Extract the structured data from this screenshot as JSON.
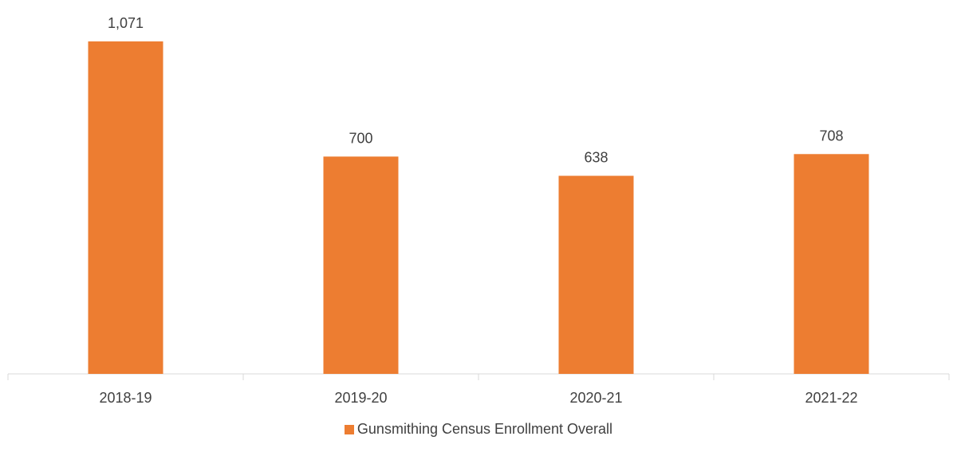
{
  "chart_data": {
    "type": "bar",
    "title": "",
    "xlabel": "",
    "ylabel": "",
    "categories": [
      "2018-19",
      "2019-20",
      "2020-21",
      "2021-22"
    ],
    "series": [
      {
        "name": "Gunsmithing Census Enrollment Overall",
        "values": [
          1071,
          700,
          638,
          708
        ],
        "labels": [
          "1,071",
          "700",
          "638",
          "708"
        ]
      }
    ],
    "ylim": [
      0,
      1080
    ],
    "grid": false,
    "legend_position": "bottom",
    "colors": {
      "bar": "#ED7D31",
      "axis": "#D9D9D9",
      "text": "#404040"
    }
  }
}
